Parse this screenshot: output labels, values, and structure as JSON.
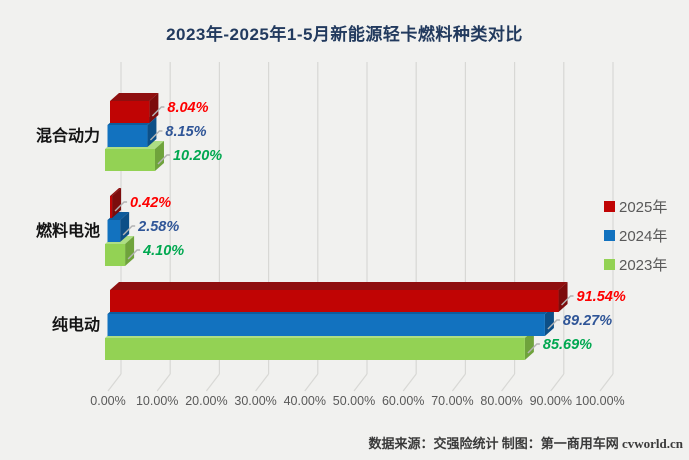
{
  "title": "2023年-2025年1-5月新能源轻卡燃料种类对比",
  "chart_data": {
    "type": "bar",
    "orientation": "horizontal",
    "style": "3d",
    "title": "2023年-2025年1-5月新能源轻卡燃料种类对比",
    "categories": [
      "混合动力",
      "燃料电池",
      "纯电动"
    ],
    "series": [
      {
        "name": "2025年",
        "color": "#c00404",
        "top_color": "#8f0f0f",
        "side_color": "#7c0c0c",
        "label_color": "#fe0000",
        "values": [
          8.04,
          0.42,
          91.54
        ]
      },
      {
        "name": "2024年",
        "color": "#1272bf",
        "top_color": "#0f5c9c",
        "side_color": "#0d4f87",
        "label_color": "#2f5597",
        "values": [
          8.15,
          2.58,
          89.27
        ]
      },
      {
        "name": "2023年",
        "color": "#93d254",
        "top_color": "#aede84",
        "side_color": "#6fa33c",
        "label_color": "#00a850",
        "values": [
          10.2,
          4.1,
          85.69
        ]
      }
    ],
    "xlabel": "",
    "ylabel": "",
    "xlim": [
      0,
      100
    ],
    "xticks": [
      "0.00%",
      "10.00%",
      "20.00%",
      "30.00%",
      "40.00%",
      "50.00%",
      "60.00%",
      "70.00%",
      "80.00%",
      "90.00%",
      "100.00%"
    ],
    "grid": true,
    "legend_position": "right",
    "colors": {
      "background": "#f1f1ef",
      "gridline": "#d8d8d5",
      "tick_text": "#595959",
      "legend_text": "#595959",
      "title_text": "#223a5e",
      "leader_line": "#b3b3b3",
      "category_text": "#141414"
    }
  },
  "footer": {
    "source": "数据来源：交强险统计 制图：第一商用车网 cvworld.cn"
  }
}
